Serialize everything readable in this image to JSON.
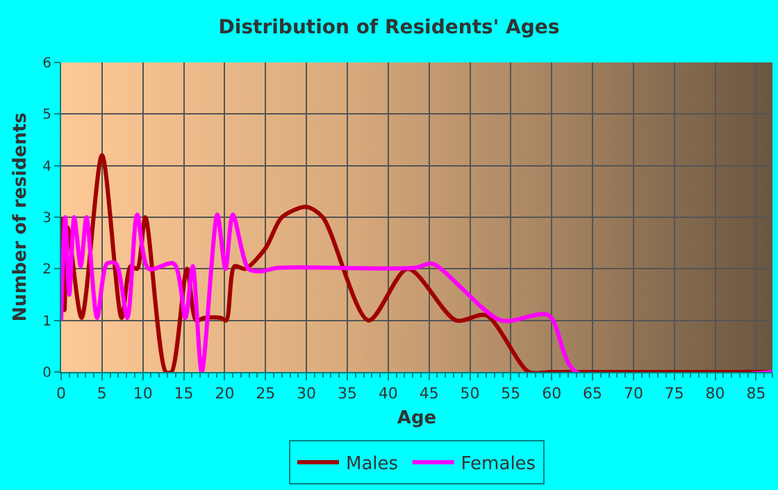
{
  "chart_data": {
    "type": "line",
    "title": "Distribution of Residents' Ages",
    "xlabel": "Age",
    "ylabel": "Number of residents",
    "xlim": [
      0,
      87
    ],
    "xticks": [
      0,
      5,
      10,
      15,
      20,
      25,
      30,
      35,
      40,
      45,
      50,
      55,
      60,
      65,
      70,
      75,
      80,
      85
    ],
    "ylim": [
      0,
      6
    ],
    "yticks": [
      0,
      1,
      2,
      3,
      4,
      5,
      6
    ],
    "grid": true,
    "legend": "bottom",
    "marker": "none",
    "line_style": "solid",
    "series": [
      {
        "name": "Males",
        "color": "#a00000",
        "x": [
          0,
          0.4,
          0.8,
          2.5,
          5,
          7.4,
          8.5,
          9.3,
          10.3,
          12.8,
          13.5,
          15.4,
          16.5,
          17.5,
          19.5,
          20.2,
          21.2,
          22.5,
          25,
          27,
          30,
          32,
          37.6,
          42.4,
          48.3,
          52,
          57.2,
          60,
          87
        ],
        "values": [
          3,
          1.2,
          2.8,
          1.05,
          4.2,
          1.05,
          2.05,
          2,
          3,
          0,
          0,
          2,
          1,
          1.05,
          1.05,
          1,
          2.05,
          2,
          2.4,
          3,
          3.2,
          3,
          1,
          2,
          1,
          1.1,
          0,
          0,
          0
        ]
      },
      {
        "name": "Females",
        "color": "#ff00ff",
        "x": [
          0,
          0.5,
          1,
          1.6,
          2.4,
          3.1,
          4.4,
          5.6,
          6.7,
          8.1,
          9.3,
          10.7,
          13.8,
          15.2,
          16.1,
          17.2,
          19.1,
          20.1,
          21,
          22.9,
          24.3,
          26.6,
          43.3,
          45.4,
          53.8,
          59.6,
          63,
          87
        ],
        "values": [
          1,
          3,
          1.5,
          3,
          2.05,
          3,
          1.05,
          2.1,
          2.1,
          1.05,
          3.05,
          2,
          2.1,
          1.05,
          2.05,
          0,
          3.05,
          2,
          3.05,
          2,
          1.95,
          2.02,
          2.02,
          2.1,
          1,
          1.1,
          0,
          0
        ]
      }
    ]
  }
}
